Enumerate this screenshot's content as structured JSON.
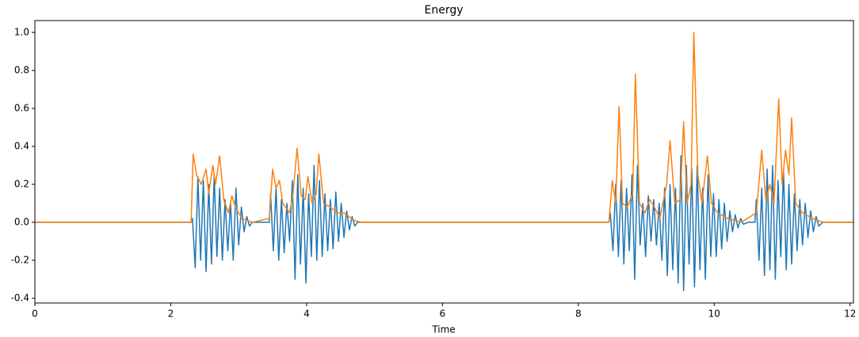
{
  "chart_data": {
    "type": "line",
    "title": "Energy",
    "x_label": "Time",
    "xlim": [
      0,
      12.05
    ],
    "xticks": [
      0,
      2,
      4,
      6,
      8,
      10,
      12
    ],
    "ylim": [
      -0.425,
      1.0625
    ],
    "yticks": [
      -0.4,
      -0.2,
      {
        "value": 0,
        "label": "0.0"
      },
      0.2,
      0.4,
      0.6,
      0.8,
      {
        "value": 1,
        "label": "1.0"
      }
    ],
    "grid": false,
    "series": [
      {
        "color": "#1f77b4",
        "x": [
          0,
          2.3,
          2.32,
          2.36,
          2.4,
          2.44,
          2.48,
          2.52,
          2.56,
          2.6,
          2.64,
          2.68,
          2.72,
          2.76,
          2.8,
          2.84,
          2.88,
          2.92,
          2.96,
          3.0,
          3.04,
          3.08,
          3.12,
          3.16,
          3.2,
          3.45,
          3.47,
          3.51,
          3.55,
          3.59,
          3.63,
          3.67,
          3.71,
          3.75,
          3.79,
          3.83,
          3.87,
          3.91,
          3.95,
          3.99,
          4.03,
          4.07,
          4.11,
          4.15,
          4.19,
          4.23,
          4.27,
          4.31,
          4.35,
          4.39,
          4.43,
          4.47,
          4.51,
          4.55,
          4.59,
          4.63,
          4.67,
          4.71,
          4.75,
          8.45,
          8.47,
          8.51,
          8.55,
          8.59,
          8.63,
          8.67,
          8.71,
          8.75,
          8.79,
          8.83,
          8.87,
          8.91,
          8.95,
          8.99,
          9.03,
          9.07,
          9.11,
          9.15,
          9.19,
          9.23,
          9.27,
          9.31,
          9.35,
          9.39,
          9.43,
          9.47,
          9.51,
          9.55,
          9.59,
          9.63,
          9.67,
          9.71,
          9.75,
          9.79,
          9.83,
          9.87,
          9.91,
          9.95,
          9.99,
          10.03,
          10.07,
          10.11,
          10.15,
          10.19,
          10.23,
          10.27,
          10.31,
          10.35,
          10.39,
          10.43,
          10.5,
          10.6,
          10.62,
          10.66,
          10.7,
          10.74,
          10.78,
          10.82,
          10.86,
          10.9,
          10.94,
          10.98,
          11.02,
          11.06,
          11.1,
          11.14,
          11.18,
          11.22,
          11.26,
          11.3,
          11.34,
          11.38,
          11.42,
          11.46,
          11.5,
          11.54,
          11.6,
          12.05
        ],
        "values": [
          0,
          0,
          0.02,
          -0.24,
          0.24,
          -0.2,
          0.22,
          -0.26,
          0.2,
          -0.22,
          0.25,
          -0.18,
          0.18,
          -0.2,
          0.12,
          -0.15,
          0.1,
          -0.2,
          0.18,
          -0.12,
          0.08,
          -0.05,
          0.03,
          -0.02,
          0,
          0,
          0.15,
          -0.15,
          0.18,
          -0.2,
          0.12,
          -0.16,
          0.1,
          -0.1,
          0.22,
          -0.3,
          0.25,
          -0.22,
          0.18,
          -0.32,
          0.15,
          -0.18,
          0.3,
          -0.2,
          0.22,
          -0.18,
          0.15,
          -0.15,
          0.12,
          -0.14,
          0.16,
          -0.1,
          0.1,
          -0.08,
          0.06,
          -0.04,
          0.03,
          -0.02,
          0,
          0,
          0.05,
          -0.15,
          0.2,
          -0.18,
          0.22,
          -0.22,
          0.18,
          -0.15,
          0.25,
          -0.3,
          0.3,
          -0.12,
          0.1,
          -0.18,
          0.14,
          -0.1,
          0.12,
          -0.12,
          0.1,
          -0.2,
          0.18,
          -0.28,
          0.2,
          -0.25,
          0.18,
          -0.32,
          0.35,
          -0.36,
          0.3,
          -0.22,
          0.28,
          -0.34,
          0.3,
          -0.25,
          0.18,
          -0.3,
          0.25,
          -0.18,
          0.15,
          -0.18,
          0.12,
          -0.14,
          0.1,
          -0.1,
          0.06,
          -0.05,
          0.04,
          -0.03,
          0.02,
          -0.01,
          0,
          0,
          0.12,
          -0.2,
          0.18,
          -0.28,
          0.28,
          -0.25,
          0.3,
          -0.3,
          0.22,
          -0.18,
          0.28,
          -0.25,
          0.2,
          -0.22,
          0.15,
          -0.15,
          0.12,
          -0.12,
          0.1,
          -0.08,
          0.06,
          -0.05,
          0.03,
          -0.02,
          0,
          0
        ]
      },
      {
        "color": "#ff7f0e",
        "x": [
          0,
          2.3,
          2.33,
          2.38,
          2.45,
          2.52,
          2.56,
          2.62,
          2.66,
          2.72,
          2.78,
          2.85,
          2.9,
          2.95,
          3.05,
          3.2,
          3.45,
          3.5,
          3.55,
          3.6,
          3.65,
          3.75,
          3.8,
          3.86,
          3.92,
          3.98,
          4.02,
          4.08,
          4.14,
          4.18,
          4.25,
          4.35,
          4.45,
          4.55,
          4.7,
          4.8,
          8.45,
          8.5,
          8.55,
          8.6,
          8.65,
          8.72,
          8.8,
          8.84,
          8.9,
          8.98,
          9.05,
          9.12,
          9.2,
          9.3,
          9.35,
          9.42,
          9.5,
          9.55,
          9.6,
          9.66,
          9.7,
          9.76,
          9.82,
          9.9,
          9.96,
          10.05,
          10.2,
          10.4,
          10.62,
          10.7,
          10.76,
          10.82,
          10.88,
          10.95,
          11.0,
          11.05,
          11.1,
          11.14,
          11.2,
          11.3,
          11.45,
          11.6,
          12.05
        ],
        "values": [
          0,
          0,
          0.36,
          0.25,
          0.2,
          0.28,
          0.15,
          0.3,
          0.2,
          0.35,
          0.12,
          0.05,
          0.14,
          0.08,
          0.02,
          0,
          0.02,
          0.28,
          0.18,
          0.22,
          0.1,
          0.05,
          0.15,
          0.39,
          0.14,
          0.12,
          0.24,
          0.1,
          0.15,
          0.36,
          0.1,
          0.08,
          0.05,
          0.05,
          0.01,
          0,
          0,
          0.22,
          0.1,
          0.61,
          0.1,
          0.08,
          0.15,
          0.78,
          0.1,
          0.05,
          0.12,
          0.08,
          0.02,
          0.2,
          0.43,
          0.1,
          0.12,
          0.53,
          0.1,
          0.2,
          1.0,
          0.25,
          0.1,
          0.35,
          0.1,
          0.05,
          0.02,
          0,
          0.05,
          0.38,
          0.12,
          0.2,
          0.1,
          0.65,
          0.2,
          0.38,
          0.25,
          0.55,
          0.1,
          0.05,
          0.02,
          0,
          0
        ]
      }
    ]
  }
}
